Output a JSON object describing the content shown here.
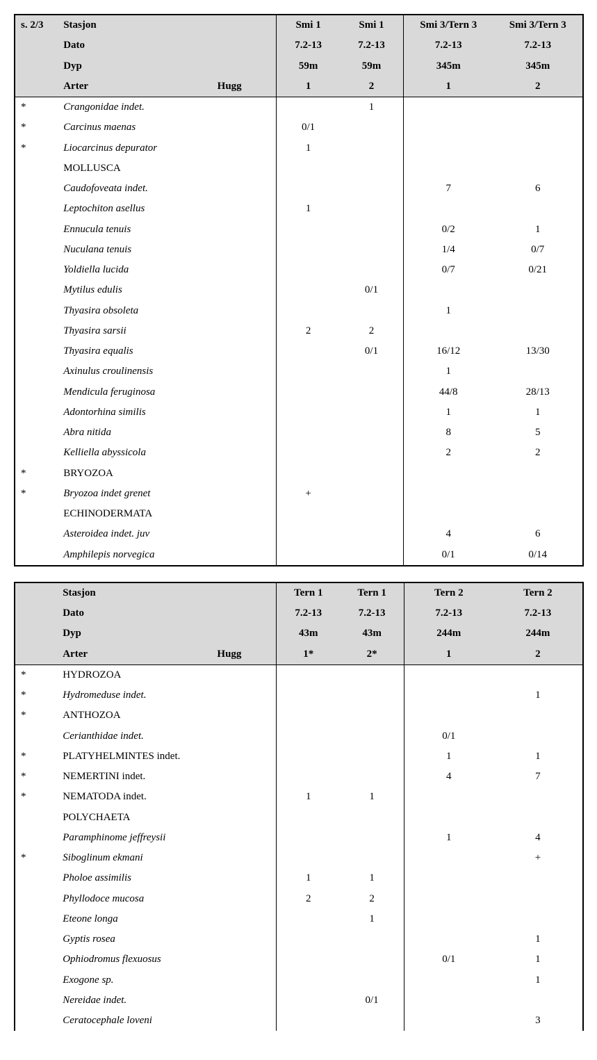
{
  "labels": {
    "page": "s. 2/3",
    "stasjon": "Stasjon",
    "dato": "Dato",
    "dyp": "Dyp",
    "arter": "Arter",
    "hugg": "Hugg"
  },
  "table1": {
    "stations": [
      "Smi 1",
      "Smi 1",
      "Smi 3/Tern 3",
      "Smi 3/Tern 3"
    ],
    "dates": [
      "7.2-13",
      "7.2-13",
      "7.2-13",
      "7.2-13"
    ],
    "depths": [
      "59m",
      "59m",
      "345m",
      "345m"
    ],
    "hugg": [
      "1",
      "2",
      "1",
      "2"
    ],
    "rows": [
      {
        "mark": "*",
        "name": "Crangonidae indet.",
        "italic": true,
        "v": [
          "",
          "1",
          "",
          ""
        ]
      },
      {
        "mark": "*",
        "name": "Carcinus maenas",
        "italic": true,
        "v": [
          "0/1",
          "",
          "",
          ""
        ]
      },
      {
        "mark": "*",
        "name": "Liocarcinus depurator",
        "italic": true,
        "v": [
          "1",
          "",
          "",
          ""
        ]
      },
      {
        "mark": "",
        "name": "MOLLUSCA",
        "italic": false,
        "v": [
          "",
          "",
          "",
          ""
        ]
      },
      {
        "mark": "",
        "name": "Caudofoveata indet.",
        "italic": true,
        "v": [
          "",
          "",
          "7",
          "6"
        ]
      },
      {
        "mark": "",
        "name": "Leptochiton asellus",
        "italic": true,
        "v": [
          "1",
          "",
          "",
          ""
        ]
      },
      {
        "mark": "",
        "name": "Ennucula tenuis",
        "italic": true,
        "v": [
          "",
          "",
          "0/2",
          "1"
        ]
      },
      {
        "mark": "",
        "name": "Nuculana tenuis",
        "italic": true,
        "v": [
          "",
          "",
          "1/4",
          "0/7"
        ]
      },
      {
        "mark": "",
        "name": "Yoldiella lucida",
        "italic": true,
        "v": [
          "",
          "",
          "0/7",
          "0/21"
        ]
      },
      {
        "mark": "",
        "name": "Mytilus edulis",
        "italic": true,
        "v": [
          "",
          "0/1",
          "",
          ""
        ]
      },
      {
        "mark": "",
        "name": "Thyasira obsoleta",
        "italic": true,
        "v": [
          "",
          "",
          "1",
          ""
        ]
      },
      {
        "mark": "",
        "name": "Thyasira sarsii",
        "italic": true,
        "v": [
          "2",
          "2",
          "",
          ""
        ]
      },
      {
        "mark": "",
        "name": "Thyasira equalis",
        "italic": true,
        "v": [
          "",
          "0/1",
          "16/12",
          "13/30"
        ]
      },
      {
        "mark": "",
        "name": "Axinulus croulinensis",
        "italic": true,
        "v": [
          "",
          "",
          "1",
          ""
        ]
      },
      {
        "mark": "",
        "name": "Mendicula feruginosa",
        "italic": true,
        "v": [
          "",
          "",
          "44/8",
          "28/13"
        ]
      },
      {
        "mark": "",
        "name": "Adontorhina similis",
        "italic": true,
        "v": [
          "",
          "",
          "1",
          "1"
        ]
      },
      {
        "mark": "",
        "name": "Abra nitida",
        "italic": true,
        "v": [
          "",
          "",
          "8",
          "5"
        ]
      },
      {
        "mark": "",
        "name": "Kelliella abyssicola",
        "italic": true,
        "v": [
          "",
          "",
          "2",
          "2"
        ]
      },
      {
        "mark": "*",
        "name": "BRYOZOA",
        "italic": false,
        "v": [
          "",
          "",
          "",
          ""
        ]
      },
      {
        "mark": "*",
        "name": "Bryozoa indet grenet",
        "italic": true,
        "v": [
          "+",
          "",
          "",
          ""
        ]
      },
      {
        "mark": "",
        "name": "ECHINODERMATA",
        "italic": false,
        "v": [
          "",
          "",
          "",
          ""
        ]
      },
      {
        "mark": "",
        "name": "Asteroidea indet. juv",
        "italic": true,
        "v": [
          "",
          "",
          "4",
          "6"
        ]
      },
      {
        "mark": "",
        "name": "Amphilepis norvegica",
        "italic": true,
        "v": [
          "",
          "",
          "0/1",
          "0/14"
        ]
      }
    ]
  },
  "table2": {
    "stations": [
      "Tern 1",
      "Tern 1",
      "Tern 2",
      "Tern 2"
    ],
    "dates": [
      "7.2-13",
      "7.2-13",
      "7.2-13",
      "7.2-13"
    ],
    "depths": [
      "43m",
      "43m",
      "244m",
      "244m"
    ],
    "hugg": [
      "1*",
      "2*",
      "1",
      "2"
    ],
    "rows": [
      {
        "mark": "*",
        "name": "HYDROZOA",
        "italic": false,
        "v": [
          "",
          "",
          "",
          ""
        ]
      },
      {
        "mark": "*",
        "name": "Hydromeduse indet.",
        "italic": true,
        "v": [
          "",
          "",
          "",
          "1"
        ]
      },
      {
        "mark": "*",
        "name": "ANTHOZOA",
        "italic": false,
        "v": [
          "",
          "",
          "",
          ""
        ]
      },
      {
        "mark": "",
        "name": "Cerianthidae indet.",
        "italic": true,
        "v": [
          "",
          "",
          "0/1",
          ""
        ]
      },
      {
        "mark": "*",
        "name": "PLATYHELMINTES indet.",
        "italic": false,
        "v": [
          "",
          "",
          "1",
          "1"
        ]
      },
      {
        "mark": "*",
        "name": "NEMERTINI indet.",
        "italic": false,
        "v": [
          "",
          "",
          "4",
          "7"
        ]
      },
      {
        "mark": "*",
        "name": "NEMATODA indet.",
        "italic": false,
        "v": [
          "1",
          "1",
          "",
          ""
        ]
      },
      {
        "mark": "",
        "name": "POLYCHAETA",
        "italic": false,
        "v": [
          "",
          "",
          "",
          ""
        ]
      },
      {
        "mark": "",
        "name": "Paramphinome jeffreysii",
        "italic": true,
        "v": [
          "",
          "",
          "1",
          "4"
        ]
      },
      {
        "mark": "*",
        "name": "Siboglinum ekmani",
        "italic": true,
        "v": [
          "",
          "",
          "",
          "+"
        ]
      },
      {
        "mark": "",
        "name": "Pholoe assimilis",
        "italic": true,
        "v": [
          "1",
          "1",
          "",
          ""
        ]
      },
      {
        "mark": "",
        "name": "Phyllodoce mucosa",
        "italic": true,
        "v": [
          "2",
          "2",
          "",
          ""
        ]
      },
      {
        "mark": "",
        "name": "Eteone longa",
        "italic": true,
        "v": [
          "",
          "1",
          "",
          ""
        ]
      },
      {
        "mark": "",
        "name": "Gyptis rosea",
        "italic": true,
        "v": [
          "",
          "",
          "",
          "1"
        ]
      },
      {
        "mark": "",
        "name": "Ophiodromus flexuosus",
        "italic": true,
        "v": [
          "",
          "",
          "0/1",
          "1"
        ]
      },
      {
        "mark": "",
        "name": "Exogone sp.",
        "italic": true,
        "v": [
          "",
          "",
          "",
          "1"
        ]
      },
      {
        "mark": "",
        "name": "Nereidae indet.",
        "italic": true,
        "v": [
          "",
          "0/1",
          "",
          ""
        ]
      },
      {
        "mark": "",
        "name": "Ceratocephale loveni",
        "italic": true,
        "v": [
          "",
          "",
          "",
          "3"
        ]
      }
    ]
  }
}
